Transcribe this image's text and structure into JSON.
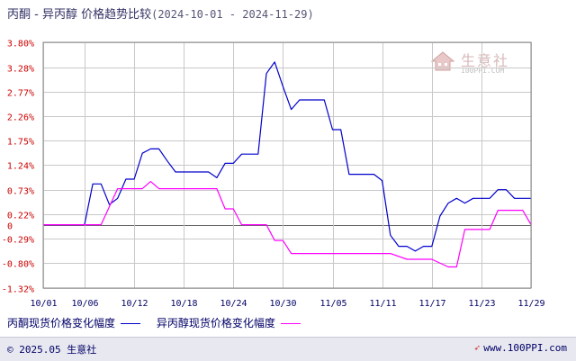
{
  "title": {
    "main": "丙酮 - 异丙醇 价格趋势比较",
    "range": "(2024-10-01 - 2024-11-29)"
  },
  "watermark": {
    "cn": "生意社",
    "en": "100PPI.COM",
    "icon": "house-logo-icon"
  },
  "footer": {
    "copyright": "© 2025.05 生意社",
    "site": "www.100PPI.com",
    "site_icon": "arrow-mark-icon"
  },
  "colors": {
    "series1": "#0000cc",
    "series2": "#ff00ff",
    "grid": "#c8c8c8",
    "axis_labels": "#cc0000"
  },
  "chart_data": {
    "type": "line",
    "title": "丙酮 - 异丙醇 价格趋势比较",
    "xlabel": "",
    "ylabel": "",
    "x_ticks": [
      "10/01",
      "10/06",
      "10/12",
      "10/18",
      "10/24",
      "10/30",
      "11/05",
      "11/11",
      "11/17",
      "11/23",
      "11/29"
    ],
    "y_ticks": [
      "3.80%",
      "3.28%",
      "2.77%",
      "2.26%",
      "1.75%",
      "1.24%",
      "0.73%",
      "0.22%",
      "-0.29%",
      "-0.80%",
      "-1.32%"
    ],
    "zero_label": "0",
    "ylim": [
      -1.32,
      3.8
    ],
    "xlim": [
      "2024-10-01",
      "2024-11-29"
    ],
    "grid": true,
    "legend_position": "bottom",
    "series": [
      {
        "name": "丙酮现货价格变化幅度",
        "color": "#0000cc",
        "points": [
          [
            "2024-10-01",
            0
          ],
          [
            "2024-10-06",
            0
          ],
          [
            "2024-10-07",
            0.85
          ],
          [
            "2024-10-08",
            0.85
          ],
          [
            "2024-10-09",
            0.42
          ],
          [
            "2024-10-10",
            0.55
          ],
          [
            "2024-10-11",
            0.95
          ],
          [
            "2024-10-12",
            0.95
          ],
          [
            "2024-10-13",
            1.49
          ],
          [
            "2024-10-14",
            1.58
          ],
          [
            "2024-10-15",
            1.58
          ],
          [
            "2024-10-16",
            1.33
          ],
          [
            "2024-10-17",
            1.1
          ],
          [
            "2024-10-21",
            1.1
          ],
          [
            "2024-10-22",
            0.98
          ],
          [
            "2024-10-23",
            1.28
          ],
          [
            "2024-10-24",
            1.28
          ],
          [
            "2024-10-25",
            1.47
          ],
          [
            "2024-10-27",
            1.47
          ],
          [
            "2024-10-28",
            3.15
          ],
          [
            "2024-10-29",
            3.39
          ],
          [
            "2024-10-30",
            2.88
          ],
          [
            "2024-10-31",
            2.4
          ],
          [
            "2024-11-01",
            2.6
          ],
          [
            "2024-11-04",
            2.6
          ],
          [
            "2024-11-05",
            1.98
          ],
          [
            "2024-11-06",
            1.98
          ],
          [
            "2024-11-07",
            1.05
          ],
          [
            "2024-11-10",
            1.05
          ],
          [
            "2024-11-11",
            0.92
          ],
          [
            "2024-11-12",
            -0.22
          ],
          [
            "2024-11-13",
            -0.45
          ],
          [
            "2024-11-14",
            -0.45
          ],
          [
            "2024-11-15",
            -0.55
          ],
          [
            "2024-11-16",
            -0.45
          ],
          [
            "2024-11-17",
            -0.45
          ],
          [
            "2024-11-18",
            0.18
          ],
          [
            "2024-11-19",
            0.45
          ],
          [
            "2024-11-20",
            0.55
          ],
          [
            "2024-11-21",
            0.45
          ],
          [
            "2024-11-22",
            0.55
          ],
          [
            "2024-11-24",
            0.55
          ],
          [
            "2024-11-25",
            0.73
          ],
          [
            "2024-11-26",
            0.73
          ],
          [
            "2024-11-27",
            0.55
          ],
          [
            "2024-11-29",
            0.55
          ]
        ]
      },
      {
        "name": "异丙醇现货价格变化幅度",
        "color": "#ff00ff",
        "points": [
          [
            "2024-10-01",
            0
          ],
          [
            "2024-10-08",
            0
          ],
          [
            "2024-10-10",
            0.75
          ],
          [
            "2024-10-13",
            0.75
          ],
          [
            "2024-10-14",
            0.9
          ],
          [
            "2024-10-15",
            0.75
          ],
          [
            "2024-10-22",
            0.75
          ],
          [
            "2024-10-23",
            0.33
          ],
          [
            "2024-10-24",
            0.33
          ],
          [
            "2024-10-25",
            0
          ],
          [
            "2024-10-28",
            0
          ],
          [
            "2024-10-29",
            -0.33
          ],
          [
            "2024-10-30",
            -0.33
          ],
          [
            "2024-10-31",
            -0.6
          ],
          [
            "2024-11-12",
            -0.6
          ],
          [
            "2024-11-14",
            -0.72
          ],
          [
            "2024-11-17",
            -0.72
          ],
          [
            "2024-11-19",
            -0.88
          ],
          [
            "2024-11-20",
            -0.88
          ],
          [
            "2024-11-21",
            -0.1
          ],
          [
            "2024-11-24",
            -0.1
          ],
          [
            "2024-11-25",
            0.3
          ],
          [
            "2024-11-28",
            0.3
          ],
          [
            "2024-11-29",
            0
          ]
        ]
      }
    ]
  }
}
